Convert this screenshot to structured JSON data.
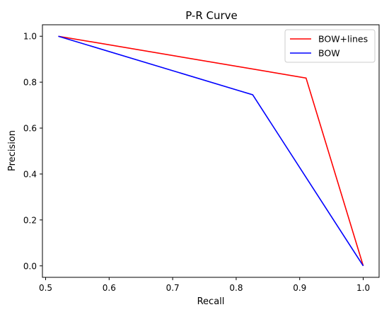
{
  "chart_data": {
    "type": "line",
    "title": "P-R Curve",
    "xlabel": "Recall",
    "ylabel": "Precision",
    "xlim": [
      0.495,
      1.025
    ],
    "ylim": [
      -0.05,
      1.05
    ],
    "xticks": [
      0.5,
      0.6,
      0.7,
      0.8,
      0.9,
      1.0
    ],
    "xtick_labels": [
      "0.5",
      "0.6",
      "0.7",
      "0.8",
      "0.9",
      "1.0"
    ],
    "yticks": [
      0.0,
      0.2,
      0.4,
      0.6,
      0.8,
      1.0
    ],
    "ytick_labels": [
      "0.0",
      "0.2",
      "0.4",
      "0.6",
      "0.8",
      "1.0"
    ],
    "grid": false,
    "legend_position": "top-right",
    "series": [
      {
        "name": "BOW+lines",
        "color": "#ff0000",
        "points": [
          [
            0.52,
            1.0
          ],
          [
            0.91,
            0.818
          ],
          [
            1.0,
            0.0
          ]
        ]
      },
      {
        "name": "BOW",
        "color": "#0000ff",
        "points": [
          [
            0.52,
            1.0
          ],
          [
            0.826,
            0.745
          ],
          [
            1.0,
            0.0
          ]
        ]
      }
    ]
  }
}
